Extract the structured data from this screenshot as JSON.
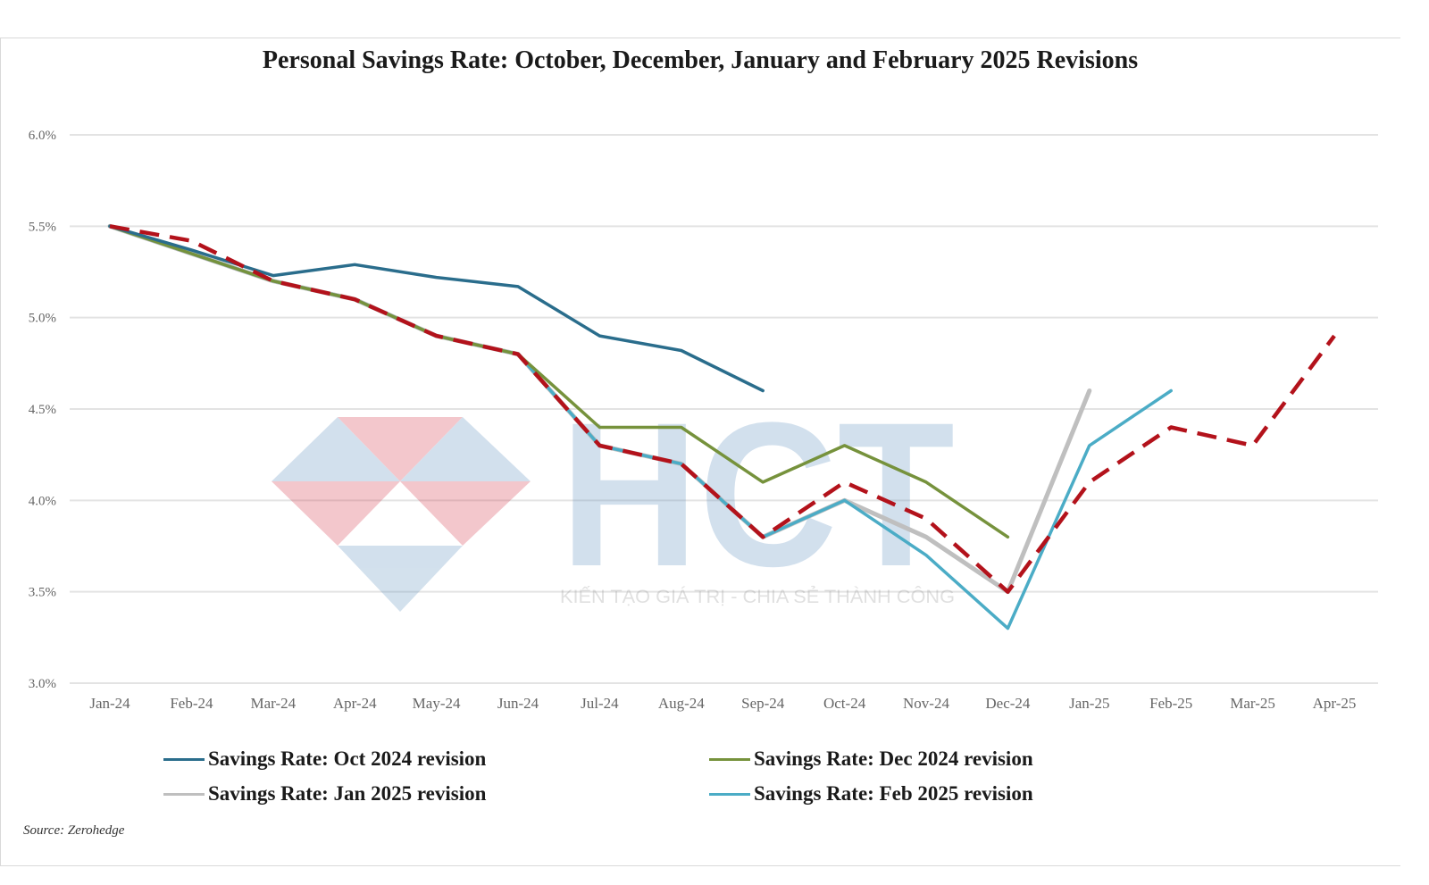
{
  "chart_data": {
    "type": "line",
    "title": "Personal Savings Rate: October, December, January and February 2025 Revisions",
    "categories": [
      "Jan-24",
      "Feb-24",
      "Mar-24",
      "Apr-24",
      "May-24",
      "Jun-24",
      "Jul-24",
      "Aug-24",
      "Sep-24",
      "Oct-24",
      "Nov-24",
      "Dec-24",
      "Jan-25",
      "Feb-25",
      "Mar-25",
      "Apr-25"
    ],
    "y_ticks": [
      "3.0%",
      "3.5%",
      "4.0%",
      "4.5%",
      "5.0%",
      "5.5%",
      "6.0%"
    ],
    "ylim": [
      3.0,
      6.0
    ],
    "grid": "horizontal",
    "legend_position": "bottom",
    "series": [
      {
        "name": "Savings Rate: Oct 2024 revision",
        "color": "#2a6d8c",
        "style": "solid",
        "values": [
          5.5,
          5.37,
          5.23,
          5.29,
          5.22,
          5.17,
          4.9,
          4.82,
          4.6,
          null,
          null,
          null,
          null,
          null,
          null,
          null
        ]
      },
      {
        "name": "Savings Rate: Dec 2024 revision",
        "color": "#76923c",
        "style": "solid",
        "values": [
          5.5,
          5.35,
          5.2,
          5.1,
          4.9,
          4.8,
          4.4,
          4.4,
          4.1,
          4.3,
          4.1,
          3.8,
          null,
          null,
          null,
          null
        ]
      },
      {
        "name": "Savings Rate: Jan 2025 revision",
        "color": "#bfbfbf",
        "style": "solid",
        "values": [
          5.5,
          5.35,
          5.2,
          5.1,
          4.9,
          4.8,
          4.3,
          4.2,
          3.8,
          4.0,
          3.8,
          3.5,
          4.6,
          null,
          null,
          null
        ]
      },
      {
        "name": "Savings Rate: Feb 2025 revision",
        "color": "#4bacc6",
        "style": "solid",
        "values": [
          5.5,
          5.35,
          5.2,
          5.1,
          4.9,
          4.8,
          4.3,
          4.2,
          3.8,
          4.0,
          3.7,
          3.3,
          4.3,
          4.6,
          null,
          null
        ]
      },
      {
        "color": "#b3121b",
        "style": "dashed",
        "values": [
          5.5,
          5.42,
          5.2,
          5.1,
          4.9,
          4.8,
          4.3,
          4.2,
          3.8,
          4.1,
          3.9,
          3.5,
          4.1,
          4.4,
          4.3,
          4.9
        ]
      }
    ]
  },
  "legend": [
    {
      "label": "Savings Rate: Oct 2024 revision",
      "color": "#2a6d8c"
    },
    {
      "label": "Savings Rate: Dec 2024 revision",
      "color": "#76923c"
    },
    {
      "label": "Savings Rate: Jan 2025 revision",
      "color": "#bfbfbf"
    },
    {
      "label": "Savings Rate: Feb 2025 revision",
      "color": "#4bacc6"
    }
  ],
  "source": "Source: Zerohedge",
  "watermark": {
    "logo_text": "HCT",
    "tagline": "KIẾN TẠO GIÁ TRỊ - CHIA SẺ THÀNH CÔNG"
  }
}
